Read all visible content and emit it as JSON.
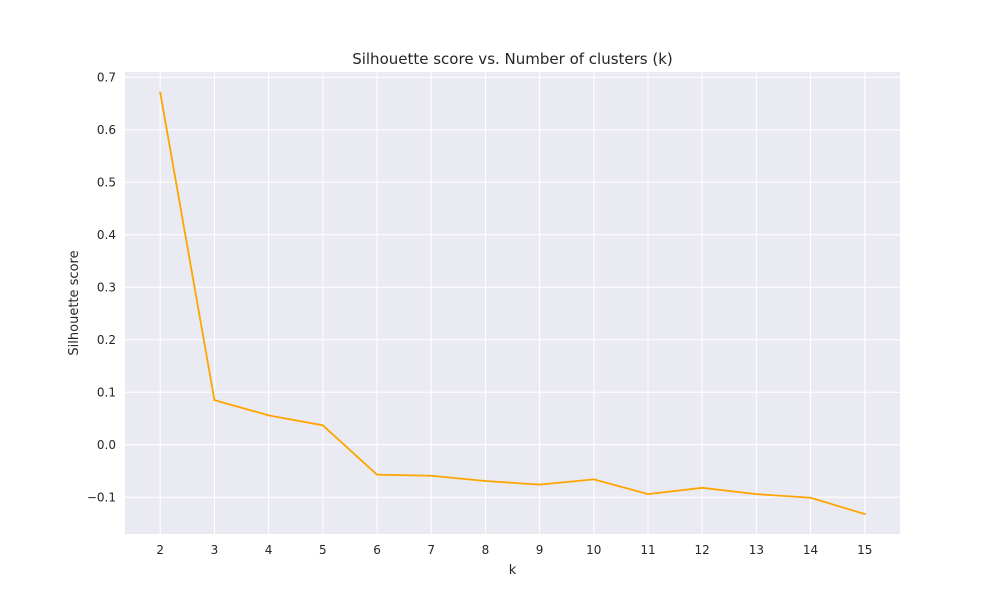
{
  "chart_data": {
    "type": "line",
    "title": "Silhouette score vs. Number of clusters (k)",
    "xlabel": "k",
    "ylabel": "Silhouette score",
    "x": [
      2,
      3,
      4,
      5,
      6,
      7,
      8,
      9,
      10,
      11,
      12,
      13,
      14,
      15
    ],
    "series": [
      {
        "values": [
          0.671,
          0.085,
          0.056,
          0.037,
          -0.057,
          -0.059,
          -0.069,
          -0.076,
          -0.066,
          -0.094,
          -0.082,
          -0.094,
          -0.101,
          -0.132
        ],
        "color": "#FFA500"
      }
    ],
    "xlim": [
      1.35,
      15.65
    ],
    "ylim": [
      -0.17,
      0.71
    ],
    "xticks": [
      "2",
      "3",
      "4",
      "5",
      "6",
      "7",
      "8",
      "9",
      "10",
      "11",
      "12",
      "13",
      "14",
      "15"
    ],
    "yticks": [
      "−0.1",
      "0.0",
      "0.1",
      "0.2",
      "0.3",
      "0.4",
      "0.5",
      "0.6",
      "0.7"
    ],
    "ytick_values": [
      -0.1,
      0.0,
      0.1,
      0.2,
      0.3,
      0.4,
      0.5,
      0.6,
      0.7
    ],
    "grid": true,
    "legend": "none",
    "style": {
      "plot_background": "#EAEAF2",
      "grid_color": "#FFFFFF",
      "text_color": "#262626"
    }
  }
}
